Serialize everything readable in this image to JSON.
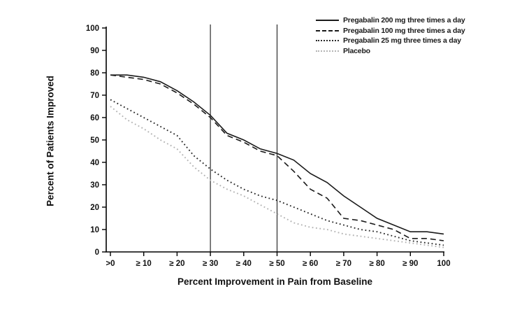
{
  "chart_data": {
    "type": "line",
    "title": "",
    "xlabel": "Percent Improvement in Pain from Baseline",
    "ylabel": "Percent of Patients Improved",
    "xlim": [
      0,
      100
    ],
    "ylim": [
      0,
      100
    ],
    "grid": false,
    "legend_position": "top-right",
    "x_ticks": [
      0,
      10,
      20,
      30,
      40,
      50,
      60,
      70,
      80,
      90,
      100
    ],
    "x_tick_labels": [
      ">0",
      "≥ 10",
      "≥ 20",
      "≥ 30",
      "≥ 40",
      "≥ 50",
      "≥ 60",
      "≥ 70",
      "≥ 80",
      "≥ 90",
      "100"
    ],
    "y_ticks": [
      0,
      10,
      20,
      30,
      40,
      50,
      60,
      70,
      80,
      90,
      100
    ],
    "reference_lines_x": [
      30,
      50
    ],
    "x": [
      0,
      5,
      10,
      15,
      20,
      25,
      30,
      35,
      40,
      45,
      50,
      55,
      60,
      65,
      70,
      75,
      80,
      85,
      90,
      95,
      100
    ],
    "series": [
      {
        "name": "Pregabalin 200 mg three times a day",
        "line_style": "solid",
        "color": "#1a1a1a",
        "values": [
          79,
          79,
          78,
          76,
          72,
          67,
          61,
          53,
          50,
          46,
          44,
          41,
          35,
          31,
          25,
          20,
          15,
          12,
          9,
          9,
          8
        ]
      },
      {
        "name": "Pregabalin 100 mg three times a day",
        "line_style": "dashed",
        "color": "#1a1a1a",
        "values": [
          79,
          78,
          77,
          75,
          71,
          66,
          60,
          52,
          49,
          45,
          43,
          36,
          28,
          24,
          15,
          14,
          12,
          10,
          6,
          6,
          5
        ]
      },
      {
        "name": "Pregabalin 25 mg three times a day",
        "line_style": "dotted",
        "color": "#2b2b2b",
        "values": [
          68,
          64,
          60,
          56,
          52,
          43,
          37,
          32,
          28,
          25,
          23,
          20,
          17,
          14,
          12,
          10,
          9,
          7,
          5,
          4,
          3
        ]
      },
      {
        "name": "Placebo",
        "line_style": "dotted",
        "color": "#b3b3b3",
        "values": [
          65,
          59,
          55,
          50,
          46,
          38,
          32,
          28,
          25,
          21,
          17,
          13,
          11,
          10,
          8,
          7,
          6,
          5,
          4,
          3,
          2
        ]
      }
    ],
    "axis_color": "#000000",
    "reference_line_color": "#2b2b2b"
  }
}
